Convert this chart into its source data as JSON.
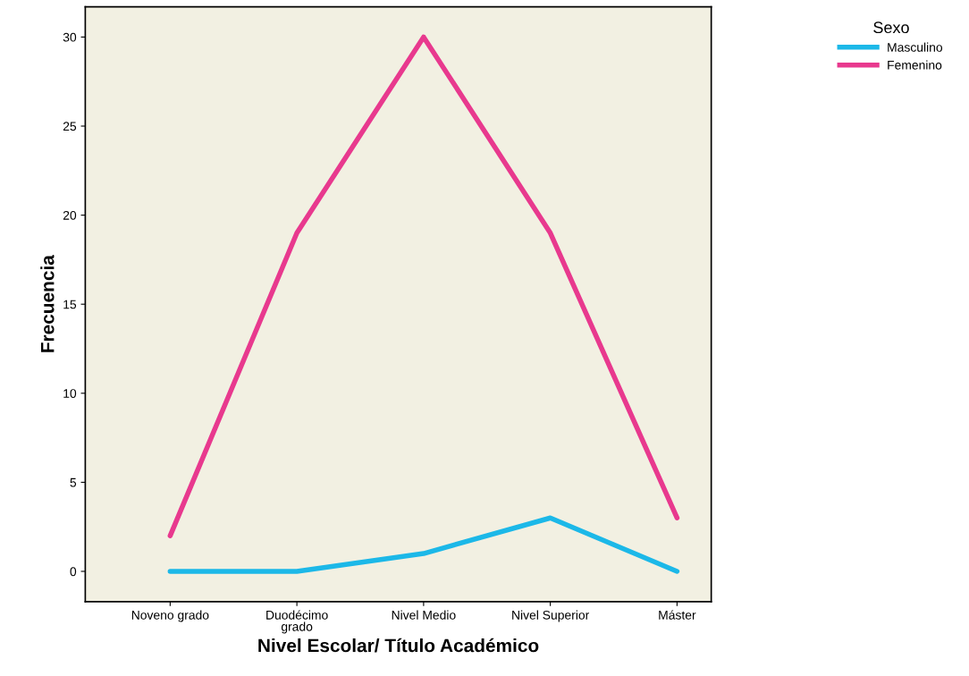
{
  "chart_data": {
    "type": "line",
    "xlabel": "Nivel Escolar/ Título Académico",
    "ylabel": "Frecuencia",
    "legend_title": "Sexo",
    "categories": [
      "Noveno grado",
      "Duodécimo\ngrado",
      "Nivel Medio",
      "Nivel Superior",
      "Máster"
    ],
    "series": [
      {
        "name": "Masculino",
        "color": "#1cb8e8",
        "values": [
          0,
          0,
          1,
          3,
          0
        ]
      },
      {
        "name": "Femenino",
        "color": "#e8398e",
        "values": [
          2,
          19,
          30,
          19,
          3
        ]
      }
    ],
    "ylim": [
      -1.7,
      31.7
    ],
    "yticks": [
      0,
      5,
      10,
      15,
      20,
      25,
      30
    ],
    "grid": false,
    "legend": "top right",
    "marker": "none",
    "line_style": "solid"
  }
}
